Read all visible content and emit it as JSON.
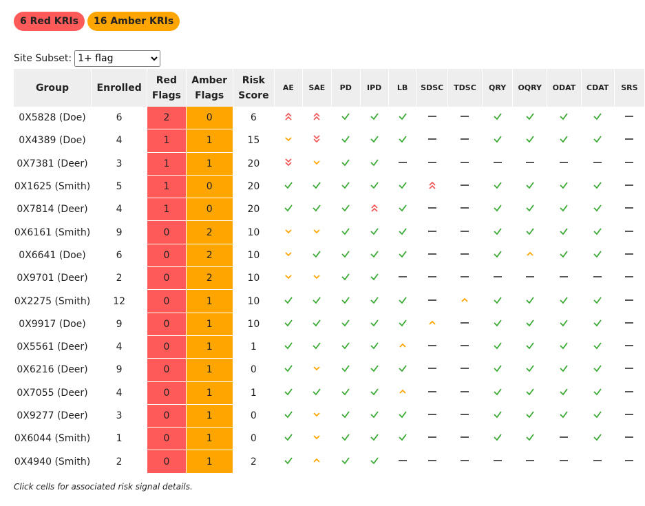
{
  "badges": [
    "6 Red KRIs",
    "16 Amber KRIs"
  ],
  "filter": {
    "label": "Site Subset:",
    "selected": "1+ flag"
  },
  "table": {
    "headers": [
      "Group",
      "Enrolled",
      "Red Flags",
      "Amber Flags",
      "Risk Score",
      "AE",
      "SAE",
      "PD",
      "IPD",
      "LB",
      "SDSC",
      "TDSC",
      "QRY",
      "OQRY",
      "ODAT",
      "CDAT",
      "SRS"
    ],
    "rows": [
      [
        "0X5828 (Doe)",
        6,
        2,
        0,
        6,
        2,
        2,
        0,
        0,
        0,
        null,
        null,
        0,
        0,
        0,
        0,
        null
      ],
      [
        "0X4389 (Doe)",
        4,
        1,
        1,
        15,
        -1,
        -2,
        0,
        0,
        0,
        null,
        null,
        0,
        0,
        0,
        0,
        null
      ],
      [
        "0X7381 (Deer)",
        3,
        1,
        1,
        20,
        -2,
        -1,
        0,
        0,
        null,
        null,
        null,
        null,
        null,
        null,
        null,
        null
      ],
      [
        "0X1625 (Smith)",
        5,
        1,
        0,
        20,
        0,
        0,
        0,
        0,
        0,
        2,
        null,
        0,
        0,
        0,
        0,
        null
      ],
      [
        "0X7814 (Deer)",
        4,
        1,
        0,
        20,
        0,
        0,
        0,
        2,
        0,
        null,
        null,
        0,
        0,
        0,
        0,
        null
      ],
      [
        "0X6161 (Smith)",
        9,
        0,
        2,
        10,
        -1,
        -1,
        0,
        0,
        0,
        null,
        null,
        0,
        0,
        0,
        0,
        null
      ],
      [
        "0X6641 (Doe)",
        6,
        0,
        2,
        10,
        -1,
        0,
        0,
        0,
        0,
        null,
        null,
        0,
        1,
        0,
        0,
        null
      ],
      [
        "0X9701 (Deer)",
        2,
        0,
        2,
        10,
        -1,
        -1,
        0,
        0,
        null,
        null,
        null,
        null,
        null,
        null,
        null,
        null
      ],
      [
        "0X2275 (Smith)",
        12,
        0,
        1,
        10,
        0,
        0,
        0,
        0,
        0,
        null,
        1,
        0,
        0,
        0,
        0,
        null
      ],
      [
        "0X9917 (Doe)",
        9,
        0,
        1,
        10,
        0,
        0,
        0,
        0,
        0,
        1,
        null,
        0,
        0,
        0,
        0,
        null
      ],
      [
        "0X5561 (Deer)",
        4,
        0,
        1,
        1,
        0,
        0,
        0,
        0,
        1,
        null,
        null,
        0,
        0,
        0,
        0,
        null
      ],
      [
        "0X6216 (Deer)",
        9,
        0,
        1,
        0,
        0,
        -1,
        0,
        0,
        0,
        null,
        null,
        0,
        0,
        0,
        0,
        null
      ],
      [
        "0X7055 (Deer)",
        4,
        0,
        1,
        1,
        0,
        0,
        0,
        0,
        1,
        null,
        null,
        0,
        0,
        0,
        0,
        null
      ],
      [
        "0X9277 (Deer)",
        3,
        0,
        1,
        0,
        0,
        -1,
        0,
        0,
        0,
        null,
        null,
        0,
        0,
        0,
        0,
        null
      ],
      [
        "0X6044 (Smith)",
        1,
        0,
        1,
        0,
        0,
        -1,
        0,
        0,
        0,
        null,
        null,
        0,
        0,
        null,
        0,
        null
      ],
      [
        "0X4940 (Smith)",
        2,
        0,
        1,
        2,
        0,
        1,
        0,
        0,
        null,
        null,
        null,
        null,
        null,
        null,
        null,
        null
      ]
    ]
  },
  "footnote": "Click cells for associated risk signal details."
}
